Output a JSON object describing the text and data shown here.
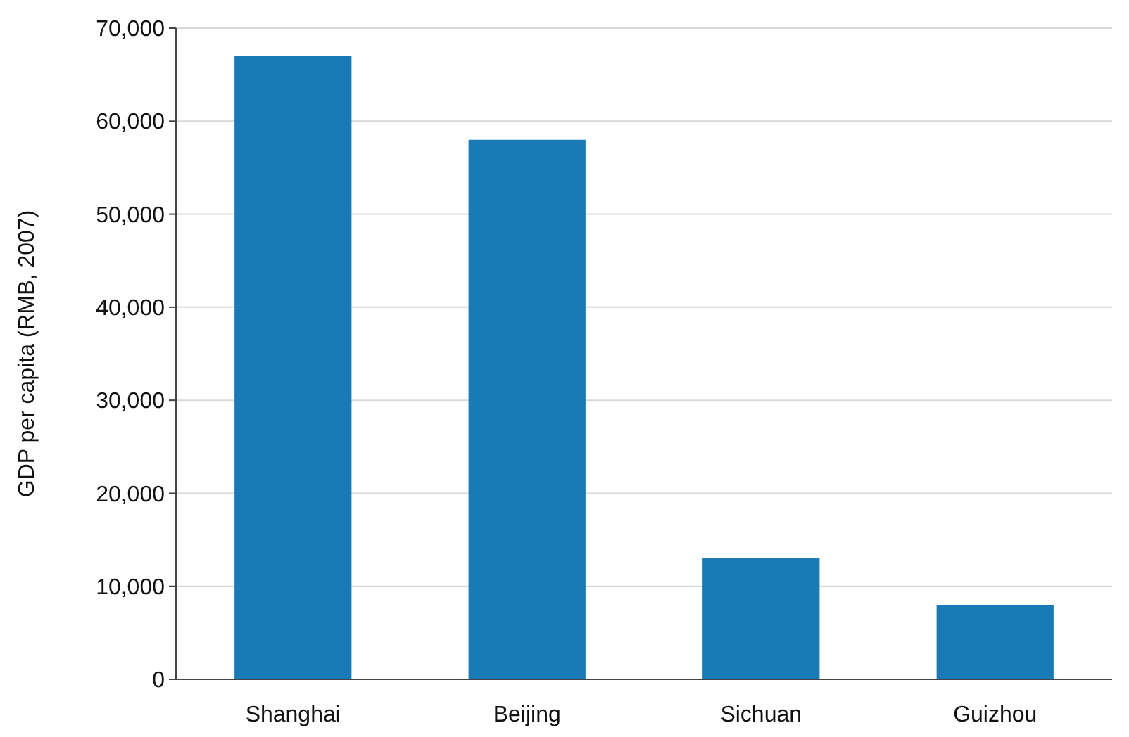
{
  "chart_data": {
    "type": "bar",
    "ylabel": "GDP per capita (RMB, 2007)",
    "categories": [
      "Shanghai",
      "Beijing",
      "Sichuan",
      "Guizhou"
    ],
    "values": [
      67000,
      58000,
      13000,
      8000
    ],
    "color": "#1a7ab5",
    "ylim": [
      0,
      70000
    ],
    "yticks": [
      {
        "value": 0,
        "label": "0"
      },
      {
        "value": 10000,
        "label": "10,000"
      },
      {
        "value": 20000,
        "label": "20,000"
      },
      {
        "value": 30000,
        "label": "30,000"
      },
      {
        "value": 40000,
        "label": "40,000"
      },
      {
        "value": 50000,
        "label": "50,000"
      },
      {
        "value": 60000,
        "label": "60,000"
      },
      {
        "value": 70000,
        "label": "70,000"
      }
    ],
    "grid": "y"
  }
}
